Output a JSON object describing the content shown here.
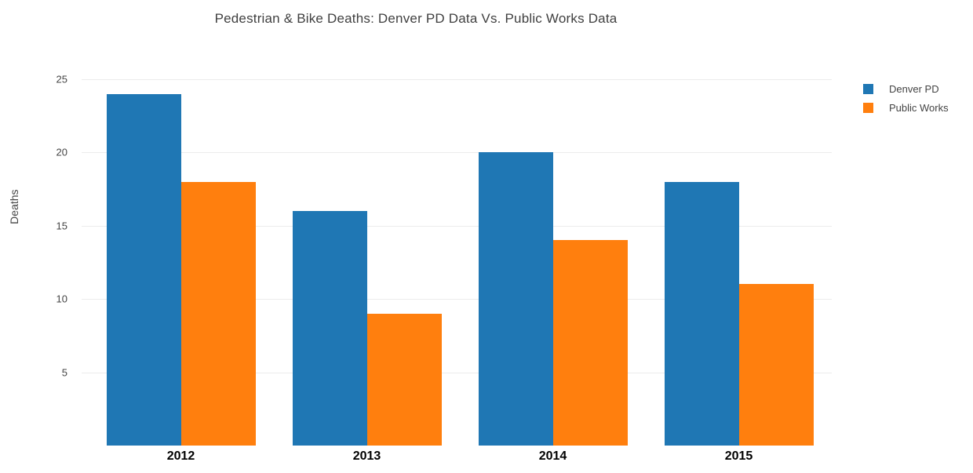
{
  "chart_data": {
    "type": "bar",
    "title": "Pedestrian & Bike Deaths: Denver PD Data Vs. Public Works Data",
    "xlabel": "",
    "ylabel": "Deaths",
    "categories": [
      "2012",
      "2013",
      "2014",
      "2015"
    ],
    "series": [
      {
        "name": "Denver PD",
        "color": "#1f77b4",
        "values": [
          24,
          16,
          20,
          18
        ]
      },
      {
        "name": "Public Works",
        "color": "#ff7f0e",
        "values": [
          18,
          9,
          14,
          11
        ]
      }
    ],
    "yticks": [
      5,
      10,
      15,
      20,
      25
    ],
    "ylim": [
      0,
      25.85
    ],
    "grid": true,
    "legend_position": "right"
  },
  "colors": {
    "background": "#ffffff",
    "gridline": "#ececec",
    "axis_text": "#444444",
    "x_tick_text": "#000000",
    "title_text": "#3f3f3f"
  }
}
